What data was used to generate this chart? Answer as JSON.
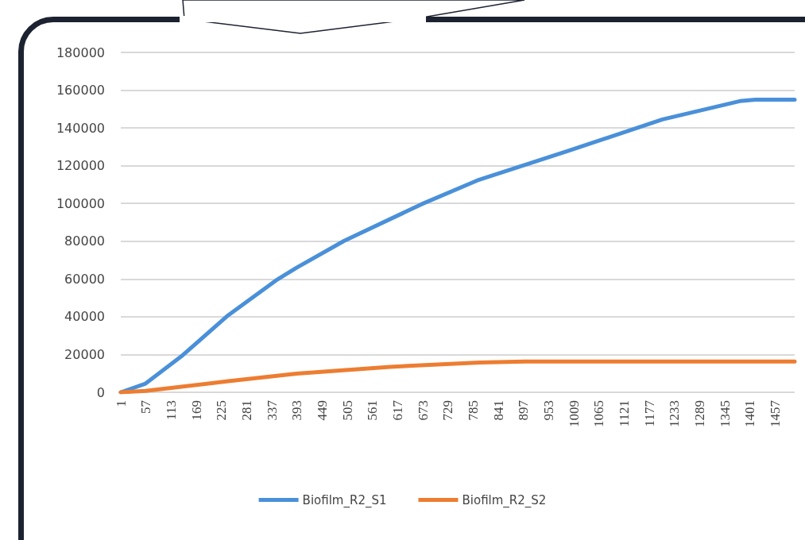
{
  "chart_data": {
    "type": "line",
    "x": [
      1,
      56,
      139,
      240,
      346,
      392,
      498,
      670,
      794,
      994,
      1206,
      1378,
      1413,
      1500
    ],
    "xlim": [
      1,
      1500
    ],
    "xticks": [
      1,
      57,
      113,
      169,
      225,
      281,
      337,
      393,
      449,
      505,
      561,
      617,
      673,
      729,
      785,
      841,
      897,
      953,
      1009,
      1065,
      1121,
      1177,
      1233,
      1289,
      1345,
      1401,
      1457
    ],
    "ylim": [
      0,
      180000
    ],
    "yticks": [
      0,
      20000,
      40000,
      60000,
      80000,
      100000,
      120000,
      140000,
      160000,
      180000
    ],
    "grid": "y",
    "legend": "bottom",
    "marker": "none",
    "line_style": "solid",
    "series": [
      {
        "name": "Biofilm_R2_S1",
        "color": "#4a90d9",
        "values": [
          0,
          4600,
          19700,
          40800,
          59200,
          66000,
          80200,
          99600,
          112200,
          127700,
          144500,
          154200,
          155000,
          155000
        ]
      },
      {
        "name": "Biofilm_R2_S2",
        "color": "#ed7d31",
        "x": [
          1,
          56,
          240,
          392,
          600,
          800,
          900,
          1500
        ],
        "values": [
          0,
          700,
          5900,
          9900,
          13500,
          15800,
          16300,
          16300
        ]
      }
    ]
  }
}
